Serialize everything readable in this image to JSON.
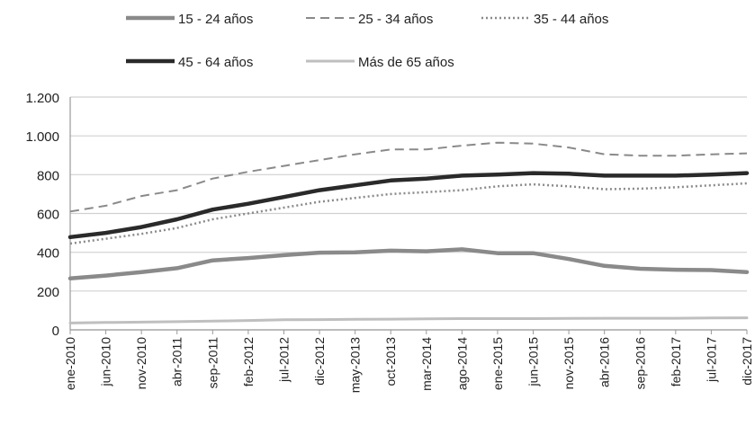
{
  "chart_data": {
    "type": "line",
    "title": "",
    "xlabel": "",
    "ylabel": "",
    "ylim": [
      0,
      1200
    ],
    "yticks": [
      0,
      200,
      400,
      600,
      800,
      1000,
      1200
    ],
    "ytick_labels": [
      "0",
      "200",
      "400",
      "600",
      "800",
      "1.000",
      "1.200"
    ],
    "grid": true,
    "legend_position": "top",
    "x_labels": [
      "ene-2010",
      "jun-2010",
      "nov-2010",
      "abr-2011",
      "sep-2011",
      "feb-2012",
      "jul-2012",
      "dic-2012",
      "may-2013",
      "oct-2013",
      "mar-2014",
      "ago-2014",
      "ene-2015",
      "jun-2015",
      "nov-2015",
      "abr-2016",
      "sep-2016",
      "feb-2017",
      "jul-2017",
      "dic-2017"
    ],
    "series": [
      {
        "name": "15 - 24 años",
        "color": "#8a8a8a",
        "style": "solid-thick",
        "values": [
          265,
          280,
          298,
          318,
          358,
          370,
          385,
          398,
          400,
          408,
          405,
          415,
          395,
          395,
          365,
          330,
          315,
          310,
          308,
          298
        ]
      },
      {
        "name": "25 - 34 años",
        "color": "#8a8a8a",
        "style": "dashed",
        "values": [
          610,
          640,
          690,
          720,
          780,
          815,
          845,
          875,
          905,
          930,
          930,
          950,
          965,
          960,
          940,
          905,
          898,
          898,
          905,
          910
        ]
      },
      {
        "name": "35 - 44 años",
        "color": "#8a8a8a",
        "style": "dotted",
        "values": [
          445,
          470,
          495,
          525,
          570,
          600,
          630,
          660,
          680,
          700,
          710,
          720,
          740,
          750,
          740,
          725,
          728,
          735,
          745,
          755
        ]
      },
      {
        "name": "45 - 64 años",
        "color": "#2a2a2a",
        "style": "solid-thick",
        "values": [
          478,
          500,
          530,
          570,
          620,
          650,
          685,
          720,
          745,
          770,
          780,
          795,
          800,
          808,
          805,
          795,
          795,
          795,
          800,
          808
        ]
      },
      {
        "name": "Más de 65 años",
        "color": "#bfbfbf",
        "style": "solid",
        "values": [
          35,
          38,
          40,
          42,
          45,
          48,
          52,
          53,
          54,
          55,
          57,
          58,
          58,
          58,
          59,
          60,
          60,
          60,
          61,
          62
        ]
      }
    ]
  }
}
